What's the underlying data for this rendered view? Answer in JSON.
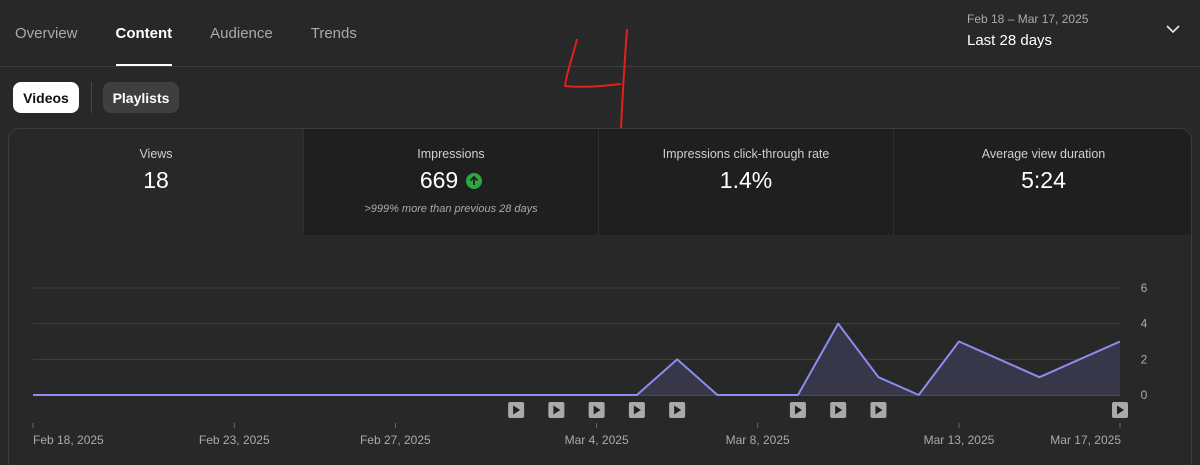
{
  "tabs": [
    {
      "label": "Overview",
      "active": false
    },
    {
      "label": "Content",
      "active": true
    },
    {
      "label": "Audience",
      "active": false
    },
    {
      "label": "Trends",
      "active": false
    }
  ],
  "date_range": {
    "dates": "Feb 18 – Mar 17, 2025",
    "label": "Last 28 days"
  },
  "chips": {
    "videos": "Videos",
    "playlists": "Playlists"
  },
  "metrics": [
    {
      "label": "Views",
      "value": "18",
      "sub": ""
    },
    {
      "label": "Impressions",
      "value": "669",
      "sub": ">999% more than previous 28 days"
    },
    {
      "label": "Impressions click-through rate",
      "value": "1.4%",
      "sub": ""
    },
    {
      "label": "Average view duration",
      "value": "5:24",
      "sub": ""
    }
  ],
  "colors": {
    "line": "#8c8cf2",
    "area": "#3b3a4f",
    "up": "#2ba640",
    "annotation": "#e0201a"
  },
  "chart_data": {
    "type": "area",
    "x": [
      "Feb 18",
      "Feb 19",
      "Feb 20",
      "Feb 21",
      "Feb 22",
      "Feb 23",
      "Feb 24",
      "Feb 25",
      "Feb 26",
      "Feb 27",
      "Feb 28",
      "Mar 1",
      "Mar 2",
      "Mar 3",
      "Mar 4",
      "Mar 5",
      "Mar 6",
      "Mar 7",
      "Mar 8",
      "Mar 9",
      "Mar 10",
      "Mar 11",
      "Mar 12",
      "Mar 13",
      "Mar 14",
      "Mar 15",
      "Mar 16",
      "Mar 17"
    ],
    "series": [
      {
        "values": [
          0,
          0,
          0,
          0,
          0,
          0,
          0,
          0,
          0,
          0,
          0,
          0,
          0,
          0,
          0,
          0,
          2,
          0,
          0,
          0,
          4,
          1,
          0,
          3,
          2,
          1,
          2,
          3
        ]
      }
    ],
    "x_tick_labels": [
      "Feb 18, 2025",
      "Feb 23, 2025",
      "Feb 27, 2025",
      "Mar 4, 2025",
      "Mar 8, 2025",
      "Mar 13, 2025",
      "Mar 17, 2025"
    ],
    "x_tick_index": [
      0,
      5,
      9,
      14,
      18,
      23,
      27
    ],
    "y_ticks": [
      0,
      2,
      4,
      6
    ],
    "y_tick_labels": [
      "0",
      "2",
      "4",
      "6"
    ],
    "ylim": [
      0,
      6
    ],
    "grid": true,
    "video_markers_index": [
      12,
      13,
      14,
      15,
      16,
      19,
      20,
      21,
      27
    ]
  }
}
